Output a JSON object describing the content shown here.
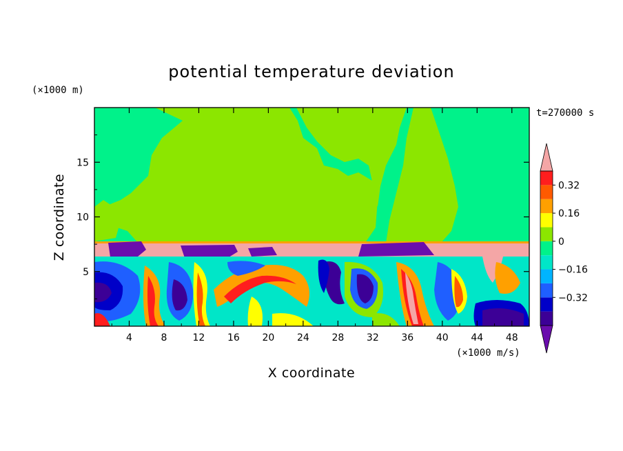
{
  "chart_data": {
    "type": "heatmap",
    "title": "potential temperature deviation",
    "xlabel": "X coordinate",
    "ylabel": "Z coordinate",
    "x_unit": "(×1000 m/s)",
    "y_unit": "(×1000 m)",
    "time_label": "t=270000 s",
    "xlim": [
      0,
      50
    ],
    "ylim": [
      0,
      20
    ],
    "x_ticks": [
      4,
      8,
      12,
      16,
      20,
      24,
      28,
      32,
      36,
      40,
      44,
      48
    ],
    "y_ticks": [
      5,
      10,
      15
    ],
    "colorbar": {
      "levels": [
        -0.48,
        -0.4,
        -0.32,
        -0.24,
        -0.16,
        -0.08,
        0,
        0.08,
        0.16,
        0.24,
        0.32,
        0.4
      ],
      "labeled_levels": [
        0.32,
        0.16,
        0,
        -0.16,
        -0.32
      ],
      "colors_bottom_to_top": [
        "#6a0dad",
        "#3c0096",
        "#0000c8",
        "#1f5fff",
        "#00b4ff",
        "#00e6c8",
        "#00f28a",
        "#8ce600",
        "#ffff00",
        "#ffa000",
        "#ff5a00",
        "#ff1e1e",
        "#f4a6a6"
      ]
    },
    "regions": {
      "upper_layer_z": [
        7.5,
        20
      ],
      "upper_layer_values": [
        0,
        0.08
      ],
      "inversion_band_z": [
        6.3,
        7.6
      ],
      "inversion_band_value": 0.4,
      "lower_layer_z": [
        0,
        6.3
      ],
      "lower_layer_range": [
        -0.48,
        0.4
      ]
    }
  }
}
